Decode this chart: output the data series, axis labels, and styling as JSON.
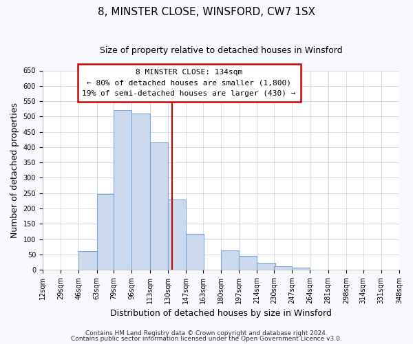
{
  "title": "8, MINSTER CLOSE, WINSFORD, CW7 1SX",
  "subtitle": "Size of property relative to detached houses in Winsford",
  "xlabel": "Distribution of detached houses by size in Winsford",
  "ylabel": "Number of detached properties",
  "bar_lefts": [
    12,
    29,
    46,
    63,
    79,
    96,
    113,
    130,
    147,
    163,
    180,
    197,
    214,
    230,
    247,
    264,
    281,
    298,
    314,
    331
  ],
  "bar_widths": [
    17,
    17,
    17,
    17,
    17,
    17,
    17,
    17,
    17,
    17,
    17,
    17,
    17,
    17,
    17,
    17,
    17,
    17,
    17,
    17
  ],
  "bar_heights": [
    0,
    0,
    60,
    248,
    520,
    510,
    415,
    230,
    117,
    0,
    63,
    45,
    23,
    12,
    8,
    0,
    0,
    0,
    0,
    0
  ],
  "bar_color": "#cddaed",
  "bar_edgecolor": "#7ba7d4",
  "marker_x": 134,
  "marker_color": "#cc0000",
  "ylim": [
    0,
    650
  ],
  "yticks": [
    0,
    50,
    100,
    150,
    200,
    250,
    300,
    350,
    400,
    450,
    500,
    550,
    600,
    650
  ],
  "xlim": [
    12,
    348
  ],
  "annotation_title": "8 MINSTER CLOSE: 134sqm",
  "annotation_line1": "← 80% of detached houses are smaller (1,800)",
  "annotation_line2": "19% of semi-detached houses are larger (430) →",
  "annotation_box_facecolor": "#ffffff",
  "annotation_box_edgecolor": "#cc0000",
  "footer_line1": "Contains HM Land Registry data © Crown copyright and database right 2024.",
  "footer_line2": "Contains public sector information licensed under the Open Government Licence v3.0.",
  "tick_positions": [
    12,
    29,
    46,
    63,
    79,
    96,
    113,
    130,
    147,
    163,
    180,
    197,
    214,
    230,
    247,
    264,
    281,
    298,
    314,
    331,
    348
  ],
  "tick_labels": [
    "12sqm",
    "29sqm",
    "46sqm",
    "63sqm",
    "79sqm",
    "96sqm",
    "113sqm",
    "130sqm",
    "147sqm",
    "163sqm",
    "180sqm",
    "197sqm",
    "214sqm",
    "230sqm",
    "247sqm",
    "264sqm",
    "281sqm",
    "298sqm",
    "314sqm",
    "331sqm",
    "348sqm"
  ],
  "figure_bg": "#f7f9fc",
  "axes_bg": "#ffffff",
  "grid_color": "#d0d8e4",
  "title_fontsize": 11,
  "subtitle_fontsize": 9,
  "axis_label_fontsize": 9,
  "tick_fontsize": 7,
  "footer_fontsize": 6.5,
  "ann_fontsize": 8
}
